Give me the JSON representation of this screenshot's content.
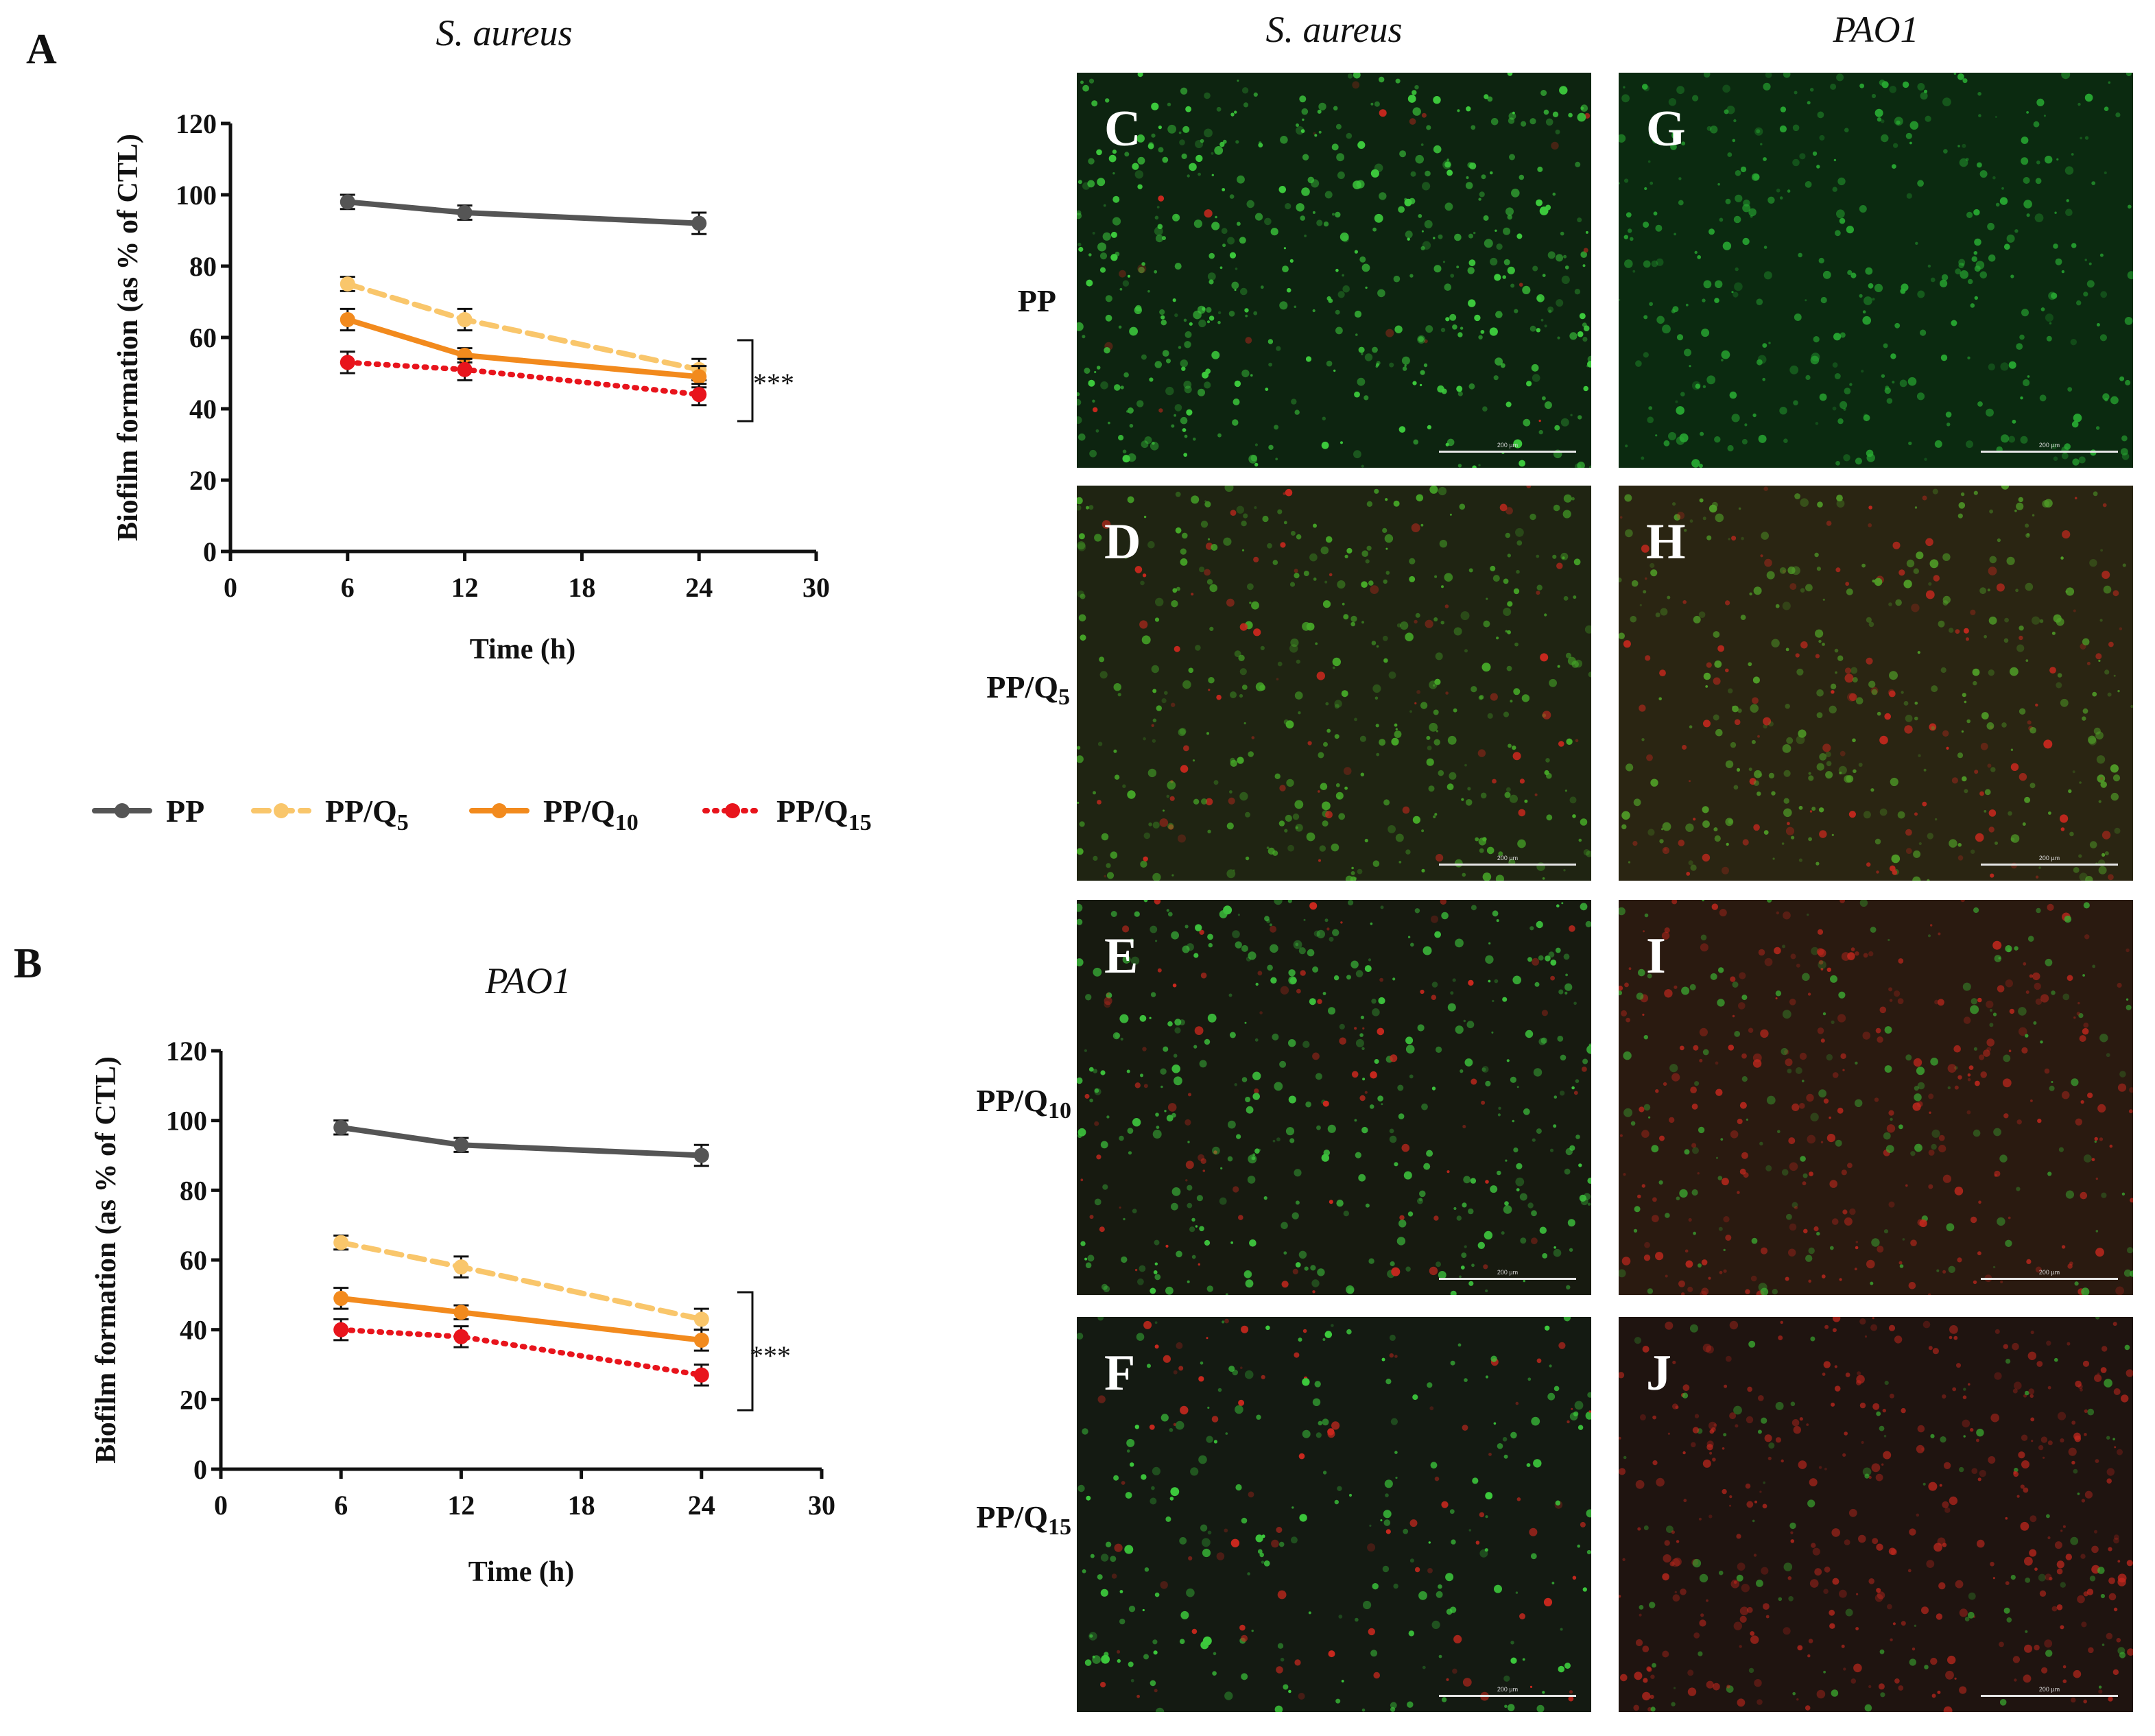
{
  "chart_data": [
    {
      "type": "line",
      "panel": "A",
      "title": "S. aureus",
      "xlabel": "Time (h)",
      "ylabel": "Biofilm formation (as % of CTL)",
      "xlim": [
        0,
        30
      ],
      "ylim": [
        0,
        120
      ],
      "xticks": [
        0,
        6,
        12,
        18,
        24,
        30
      ],
      "yticks": [
        0,
        20,
        40,
        60,
        80,
        100,
        120
      ],
      "x": [
        6,
        12,
        24
      ],
      "series": [
        {
          "name": "PP",
          "values": [
            98,
            95,
            92
          ],
          "errors": [
            2,
            2,
            3
          ],
          "color": "#555555",
          "dash": "solid"
        },
        {
          "name": "PP/Q5",
          "values": [
            75,
            65,
            51
          ],
          "errors": [
            2,
            3,
            3
          ],
          "color": "#f9c66b",
          "dash": "dashed"
        },
        {
          "name": "PP/Q10",
          "values": [
            65,
            55,
            49
          ],
          "errors": [
            3,
            2,
            3
          ],
          "color": "#f28a1d",
          "dash": "solid"
        },
        {
          "name": "PP/Q15",
          "values": [
            53,
            51,
            44
          ],
          "errors": [
            3,
            3,
            3
          ],
          "color": "#e8141c",
          "dash": "dotted"
        }
      ],
      "annotation": "***",
      "grid": false
    },
    {
      "type": "line",
      "panel": "B",
      "title": "PAO1",
      "xlabel": "Time (h)",
      "ylabel": "Biofilm formation (as % of CTL)",
      "xlim": [
        0,
        30
      ],
      "ylim": [
        0,
        120
      ],
      "xticks": [
        0,
        6,
        12,
        18,
        24,
        30
      ],
      "yticks": [
        0,
        20,
        40,
        60,
        80,
        100,
        120
      ],
      "x": [
        6,
        12,
        24
      ],
      "series": [
        {
          "name": "PP",
          "values": [
            98,
            93,
            90
          ],
          "errors": [
            2,
            2,
            3
          ],
          "color": "#555555",
          "dash": "solid"
        },
        {
          "name": "PP/Q5",
          "values": [
            65,
            58,
            43
          ],
          "errors": [
            2,
            3,
            3
          ],
          "color": "#f9c66b",
          "dash": "dashed"
        },
        {
          "name": "PP/Q10",
          "values": [
            49,
            45,
            37
          ],
          "errors": [
            3,
            2,
            3
          ],
          "color": "#f28a1d",
          "dash": "solid"
        },
        {
          "name": "PP/Q15",
          "values": [
            40,
            38,
            27
          ],
          "errors": [
            3,
            3,
            3
          ],
          "color": "#e8141c",
          "dash": "dotted"
        }
      ],
      "annotation": "***",
      "grid": false
    }
  ],
  "legend": {
    "items": [
      {
        "base": "PP",
        "sub": "",
        "color": "#555555",
        "dash": "solid"
      },
      {
        "base": "PP/Q",
        "sub": "5",
        "color": "#f9c66b",
        "dash": "dashed"
      },
      {
        "base": "PP/Q",
        "sub": "10",
        "color": "#f28a1d",
        "dash": "solid"
      },
      {
        "base": "PP/Q",
        "sub": "15",
        "color": "#e8141c",
        "dash": "dotted"
      }
    ]
  },
  "micrographs": {
    "column_headers": [
      "S. aureus",
      "PAO1"
    ],
    "row_labels": [
      {
        "base": "PP",
        "sub": ""
      },
      {
        "base": "PP/Q",
        "sub": "5"
      },
      {
        "base": "PP/Q",
        "sub": "10"
      },
      {
        "base": "PP/Q",
        "sub": "15"
      }
    ],
    "panels": [
      {
        "letter": "C",
        "scale": "200 µm",
        "tint": "green"
      },
      {
        "letter": "G",
        "scale": "200 µm",
        "tint": "green-bright"
      },
      {
        "letter": "D",
        "scale": "200 µm",
        "tint": "green-mixed"
      },
      {
        "letter": "H",
        "scale": "200 µm",
        "tint": "mixed"
      },
      {
        "letter": "E",
        "scale": "200 µm",
        "tint": "green-dark"
      },
      {
        "letter": "I",
        "scale": "200 µm",
        "tint": "red-mixed"
      },
      {
        "letter": "F",
        "scale": "200 µm",
        "tint": "dark-sparse"
      },
      {
        "letter": "J",
        "scale": "200 µm",
        "tint": "red"
      }
    ]
  }
}
